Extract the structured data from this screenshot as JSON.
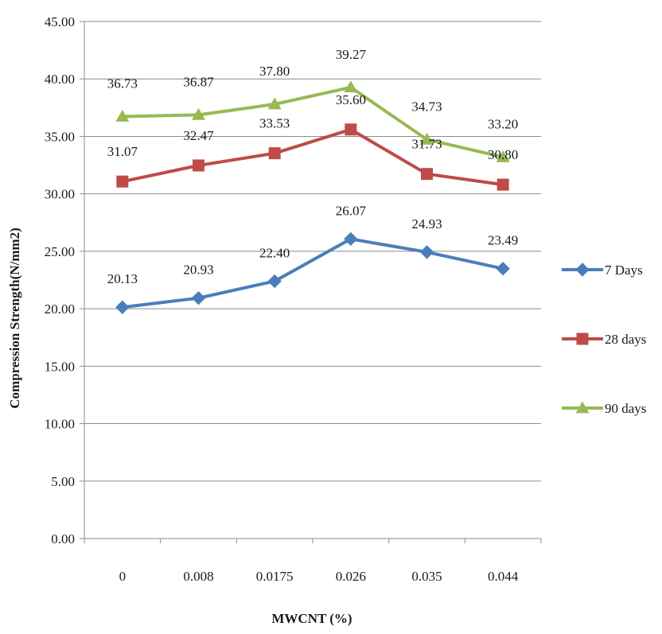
{
  "chart_data": {
    "type": "line",
    "title": "",
    "xlabel": "MWCNT (%)",
    "ylabel": "Compression Strength(N/mm2)",
    "categories": [
      "0",
      "0.008",
      "0.0175",
      "0.026",
      "0.035",
      "0.044"
    ],
    "ylim": [
      0,
      45
    ],
    "yticks": [
      "0.00",
      "5.00",
      "10.00",
      "15.00",
      "20.00",
      "25.00",
      "30.00",
      "35.00",
      "40.00",
      "45.00"
    ],
    "grid": "horizontal",
    "legend_position": "right",
    "series": [
      {
        "name": "7 Days",
        "values": [
          20.13,
          20.93,
          22.4,
          26.07,
          24.93,
          23.49
        ],
        "labels": [
          "20.13",
          "20.93",
          "22.40",
          "26.07",
          "24.93",
          "23.49"
        ],
        "color": "#4a7ebb",
        "marker": "diamond"
      },
      {
        "name": "28 days",
        "values": [
          31.07,
          32.47,
          33.53,
          35.6,
          31.73,
          30.8
        ],
        "labels": [
          "31.07",
          "32.47",
          "33.53",
          "35.60",
          "31.73",
          "30.80"
        ],
        "color": "#be4b48",
        "marker": "square"
      },
      {
        "name": "90 days",
        "values": [
          36.73,
          36.87,
          37.8,
          39.27,
          34.73,
          33.2
        ],
        "labels": [
          "36.73",
          "36.87",
          "37.80",
          "39.27",
          "34.73",
          "33.20"
        ],
        "color": "#98b954",
        "marker": "triangle"
      }
    ]
  }
}
